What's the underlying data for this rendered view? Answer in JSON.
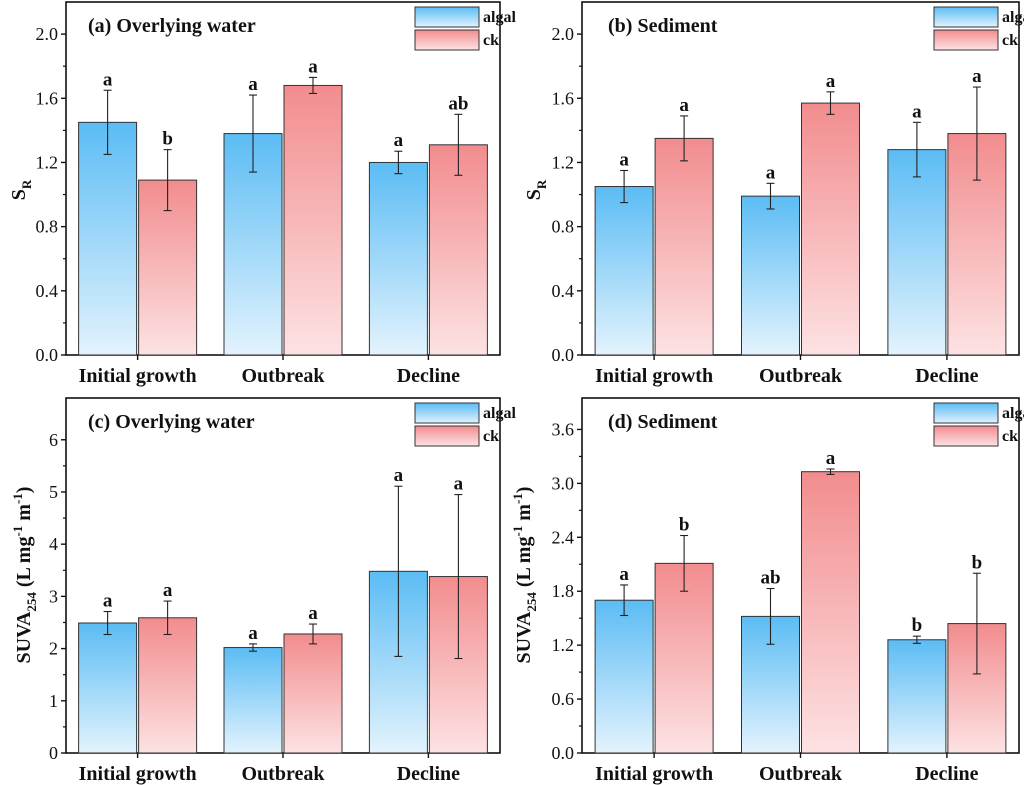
{
  "colors": {
    "algal_top": "#5bbcf4",
    "algal_bottom": "#e3f3fd",
    "ck_top": "#f28c8e",
    "ck_bottom": "#fde2e3",
    "axis": "#111111"
  },
  "chart_data": [
    {
      "panel": "a",
      "type": "bar",
      "title": "(a) Overlying water",
      "ylabel_main": "S",
      "ylabel_sub": "R",
      "ylim": [
        0,
        2.2
      ],
      "yticks": [
        "0.0",
        "0.4",
        "0.8",
        "1.2",
        "1.6",
        "2.0"
      ],
      "categories": [
        "Initial growth",
        "Outbreak",
        "Decline"
      ],
      "series": [
        {
          "name": "algal",
          "values": [
            1.45,
            1.38,
            1.2
          ],
          "errors": [
            0.2,
            0.24,
            0.07
          ],
          "letters": [
            "a",
            "a",
            "a"
          ]
        },
        {
          "name": "ck",
          "values": [
            1.09,
            1.68,
            1.31
          ],
          "errors": [
            0.19,
            0.05,
            0.19
          ],
          "letters": [
            "b",
            "a",
            "ab"
          ]
        }
      ]
    },
    {
      "panel": "b",
      "type": "bar",
      "title": "(b) Sediment",
      "ylabel_main": "S",
      "ylabel_sub": "R",
      "ylim": [
        0,
        2.2
      ],
      "yticks": [
        "0.0",
        "0.4",
        "0.8",
        "1.2",
        "1.6",
        "2.0"
      ],
      "categories": [
        "Initial growth",
        "Outbreak",
        "Decline"
      ],
      "series": [
        {
          "name": "algal",
          "values": [
            1.05,
            0.99,
            1.28
          ],
          "errors": [
            0.1,
            0.08,
            0.17
          ],
          "letters": [
            "a",
            "a",
            "a"
          ]
        },
        {
          "name": "ck",
          "values": [
            1.35,
            1.57,
            1.38
          ],
          "errors": [
            0.14,
            0.07,
            0.29
          ],
          "letters": [
            "a",
            "a",
            "a"
          ]
        }
      ]
    },
    {
      "panel": "c",
      "type": "bar",
      "title": "(c) Overlying water",
      "ylabel_main": "SUVA",
      "ylabel_sub": "254",
      "ylabel_rest": " (L mg",
      "ylabel_sup1": "-1",
      "ylabel_mid": " m",
      "ylabel_sup2": "-1",
      "ylabel_end": ")",
      "ylim": [
        0,
        6.8
      ],
      "yticks": [
        "0",
        "1",
        "2",
        "3",
        "4",
        "5",
        "6"
      ],
      "categories": [
        "Initial growth",
        "Outbreak",
        "Decline"
      ],
      "series": [
        {
          "name": "algal",
          "values": [
            2.49,
            2.02,
            3.48
          ],
          "errors": [
            0.22,
            0.07,
            1.63
          ],
          "letters": [
            "a",
            "a",
            "a"
          ]
        },
        {
          "name": "ck",
          "values": [
            2.59,
            2.28,
            3.38
          ],
          "errors": [
            0.32,
            0.19,
            1.57
          ],
          "letters": [
            "a",
            "a",
            "a"
          ]
        }
      ]
    },
    {
      "panel": "d",
      "type": "bar",
      "title": "(d) Sediment",
      "ylabel_main": "SUVA",
      "ylabel_sub": "254",
      "ylabel_rest": " (L mg",
      "ylabel_sup1": "-1",
      "ylabel_mid": " m",
      "ylabel_sup2": "-1",
      "ylabel_end": ")",
      "ylim": [
        0,
        3.95
      ],
      "yticks": [
        "0.0",
        "0.6",
        "1.2",
        "1.8",
        "2.4",
        "3.0",
        "3.6"
      ],
      "categories": [
        "Initial growth",
        "Outbreak",
        "Decline"
      ],
      "series": [
        {
          "name": "algal",
          "values": [
            1.7,
            1.52,
            1.26
          ],
          "errors": [
            0.17,
            0.31,
            0.04
          ],
          "letters": [
            "a",
            "ab",
            "b"
          ]
        },
        {
          "name": "ck",
          "values": [
            2.11,
            3.13,
            1.44
          ],
          "errors": [
            0.31,
            0.03,
            0.56
          ],
          "letters": [
            "b",
            "a",
            "b"
          ]
        }
      ]
    }
  ]
}
